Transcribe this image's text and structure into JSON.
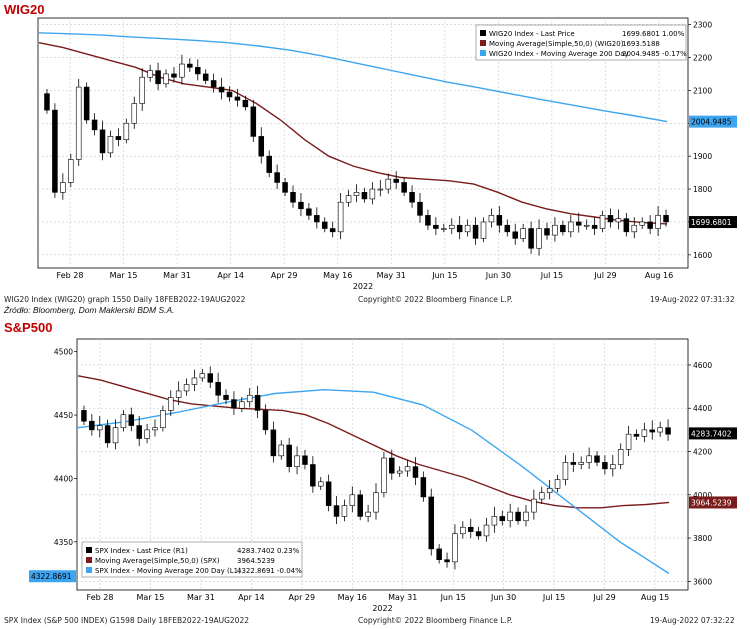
{
  "panels": [
    {
      "title": "WIG20",
      "footer_left": "WIG20 Index (WIG20) graph 1550  Daily 18FEB2022-19AUG2022",
      "footer_center": "Copyright© 2022 Bloomberg Finance L.P.",
      "footer_right": "19-Aug-2022 07:31:32",
      "source": "Źródło: Bloomberg, Dom Maklerski BDM S.A."
    },
    {
      "title": "S&P500",
      "footer_left": "SPX Index (S&P 500 INDEX) G1598  Daily 18FEB2022-19AUG2022",
      "footer_center": "Copyright© 2022 Bloomberg Finance L.P.",
      "footer_right": "19-Aug-2022 07:32:22"
    }
  ],
  "chart_data": [
    {
      "type": "candlestick",
      "title": "WIG20",
      "x_tick_labels": [
        "Feb 28",
        "Mar 15",
        "Mar 31",
        "Apr 14",
        "Apr 29",
        "May 16",
        "May 31",
        "Jun 15",
        "Jun 30",
        "Jul 15",
        "Jul 29",
        "Aug 16"
      ],
      "x_year_label": "2022",
      "y_ticks_right": [
        1600,
        1700,
        1800,
        1900,
        2000,
        2100,
        2200,
        2300
      ],
      "ylim": [
        1560,
        2320
      ],
      "legend_position": "top-right",
      "legend": [
        {
          "label": "WIG20 Index - Last Price",
          "value": "1699.6801",
          "change": "1.00%",
          "color": "#000000"
        },
        {
          "label": "Moving Average(Simple,50,0) (WIG20)",
          "value": "1693.5188",
          "change": "",
          "color": "#7b1c1c"
        },
        {
          "label": "WIG20 Index - Moving Average 200 Day",
          "value": "2004.9485",
          "change": "-0.17%",
          "color": "#3da5f0"
        }
      ],
      "value_tags": [
        {
          "text": "2004.9485",
          "value": 2004.9485,
          "side": "right",
          "color": "#3da5f0"
        },
        {
          "text": "1699.6801",
          "value": 1699.6801,
          "side": "right",
          "color": "#000000"
        }
      ],
      "price_path": [
        2090,
        2040,
        1790,
        1820,
        1890,
        2110,
        2010,
        1980,
        1910,
        1960,
        1950,
        2000,
        2060,
        2140,
        2160,
        2120,
        2150,
        2140,
        2180,
        2170,
        2150,
        2130,
        2110,
        2095,
        2080,
        2070,
        2050,
        1960,
        1900,
        1850,
        1820,
        1790,
        1760,
        1740,
        1720,
        1700,
        1680,
        1670,
        1760,
        1780,
        1790,
        1770,
        1800,
        1800,
        1830,
        1820,
        1790,
        1760,
        1720,
        1690,
        1680,
        1680,
        1690,
        1670,
        1690,
        1650,
        1700,
        1720,
        1690,
        1670,
        1650,
        1680,
        1620,
        1680,
        1660,
        1690,
        1670,
        1700,
        1690,
        1690,
        1680,
        1720,
        1700,
        1710,
        1670,
        1690,
        1700,
        1680,
        1720,
        1700
      ],
      "series": [
        {
          "name": "Moving Average(Simple,50,0) (WIG20)",
          "color": "#7b1c1c",
          "values": [
            2245,
            2230,
            2210,
            2190,
            2170,
            2140,
            2120,
            2110,
            2100,
            2060,
            2010,
            1950,
            1900,
            1870,
            1850,
            1835,
            1830,
            1825,
            1815,
            1790,
            1760,
            1740,
            1725,
            1715,
            1705,
            1698,
            1694
          ]
        },
        {
          "name": "WIG20 Index - Moving Average 200 Day",
          "color": "#3da5f0",
          "values": [
            2275,
            2272,
            2268,
            2262,
            2257,
            2252,
            2245,
            2235,
            2222,
            2205,
            2185,
            2165,
            2145,
            2125,
            2108,
            2090,
            2072,
            2055,
            2038,
            2022,
            2005
          ]
        }
      ]
    },
    {
      "type": "candlestick",
      "title": "S&P500",
      "x_tick_labels": [
        "Feb 28",
        "Mar 15",
        "Mar 31",
        "Apr 14",
        "Apr 29",
        "May 16",
        "May 31",
        "Jun 15",
        "Jun 30",
        "Jul 15",
        "Jul 29",
        "Aug 15"
      ],
      "x_year_label": "2022",
      "y_ticks_right": [
        3600,
        3800,
        4000,
        4200,
        4400,
        4600
      ],
      "y_ticks_left": [
        4350,
        4400,
        4450,
        4500
      ],
      "ylim_right": [
        3560,
        4720
      ],
      "legend_position": "bottom-left",
      "legend": [
        {
          "label": "SPX Index - Last Price (R1)",
          "value": "4283.7402",
          "change": "0.23%",
          "color": "#000000"
        },
        {
          "label": "Moving Average(Simple,50,0) (SPX)",
          "value": "3964.5239",
          "change": "",
          "color": "#7b1c1c"
        },
        {
          "label": "SPX Index - Moving Average 200 Day (L1)",
          "value": "4322.8691",
          "change": "-0.04%",
          "color": "#3da5f0"
        }
      ],
      "value_tags": [
        {
          "text": "4283.7402",
          "value": 4283.7402,
          "side": "right",
          "color": "#000000"
        },
        {
          "text": "3964.5239",
          "value": 3964.5239,
          "side": "right",
          "color": "#7b1c1c"
        },
        {
          "text": "4322.8691",
          "left_value": 4322.8691,
          "side": "left",
          "color": "#3da5f0"
        }
      ],
      "price_path": [
        4390,
        4340,
        4300,
        4320,
        4240,
        4310,
        4370,
        4320,
        4260,
        4300,
        4310,
        4390,
        4450,
        4480,
        4510,
        4540,
        4560,
        4520,
        4460,
        4440,
        4400,
        4430,
        4460,
        4390,
        4300,
        4180,
        4230,
        4130,
        4180,
        4140,
        4040,
        4060,
        3950,
        3900,
        3950,
        4000,
        3900,
        3920,
        4010,
        4170,
        4100,
        4110,
        4130,
        4080,
        3990,
        3750,
        3700,
        3690,
        3820,
        3850,
        3830,
        3810,
        3860,
        3900,
        3880,
        3920,
        3880,
        3920,
        3980,
        4010,
        4030,
        4070,
        4150,
        4140,
        4150,
        4180,
        4150,
        4120,
        4140,
        4210,
        4280,
        4270,
        4300,
        4290,
        4310,
        4280
      ],
      "series": [
        {
          "name": "Moving Average(Simple,50,0) (SPX)",
          "color": "#7b1c1c",
          "values": [
            4550,
            4530,
            4500,
            4470,
            4440,
            4420,
            4410,
            4400,
            4395,
            4390,
            4370,
            4330,
            4280,
            4230,
            4180,
            4140,
            4110,
            4080,
            4040,
            4000,
            3970,
            3950,
            3940,
            3940,
            3950,
            3955,
            3965
          ]
        },
        {
          "name": "SPX Index - Moving Average 200 Day (L1)",
          "color": "#3da5f0",
          "axis": "left",
          "values": [
            4440,
            4445,
            4452,
            4460,
            4467,
            4470,
            4468,
            4458,
            4438,
            4410,
            4380,
            4350,
            4325
          ]
        }
      ]
    }
  ]
}
